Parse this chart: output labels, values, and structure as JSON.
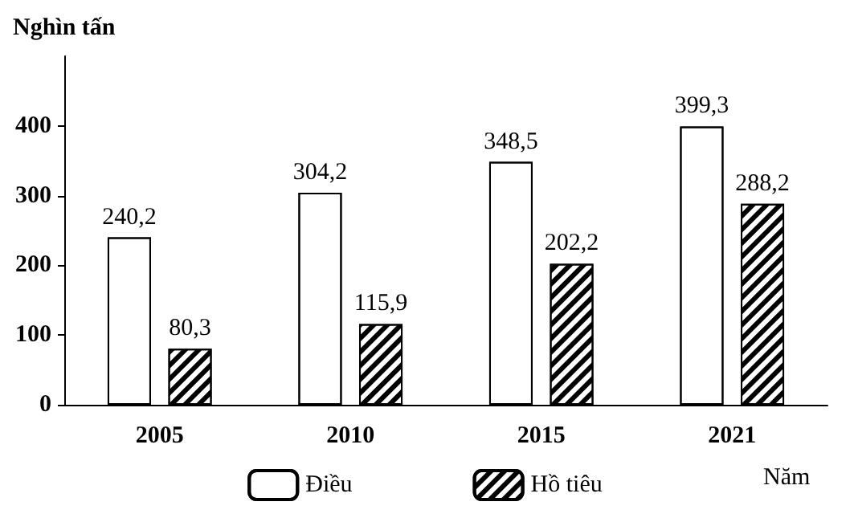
{
  "chart_data": {
    "type": "bar",
    "ylabel": "Nghìn tấn",
    "xlabel": "Năm",
    "categories": [
      "2005",
      "2010",
      "2015",
      "2021"
    ],
    "series": [
      {
        "name": "Điều",
        "color": "#ffffff",
        "values": [
          240.2,
          304.2,
          348.5,
          399.3
        ],
        "value_labels": [
          "240,2",
          "304,2",
          "348,5",
          "399,3"
        ]
      },
      {
        "name": "Hồ tiêu",
        "color": "#ffffff",
        "values": [
          80.3,
          115.9,
          202.2,
          288.2
        ],
        "value_labels": [
          "80,3",
          "115,9",
          "202,2",
          "288,2"
        ]
      }
    ],
    "ylim": [
      0,
      500
    ],
    "yticks": [
      0,
      100,
      200,
      300,
      400
    ],
    "grid": false,
    "legend": "bottom"
  }
}
